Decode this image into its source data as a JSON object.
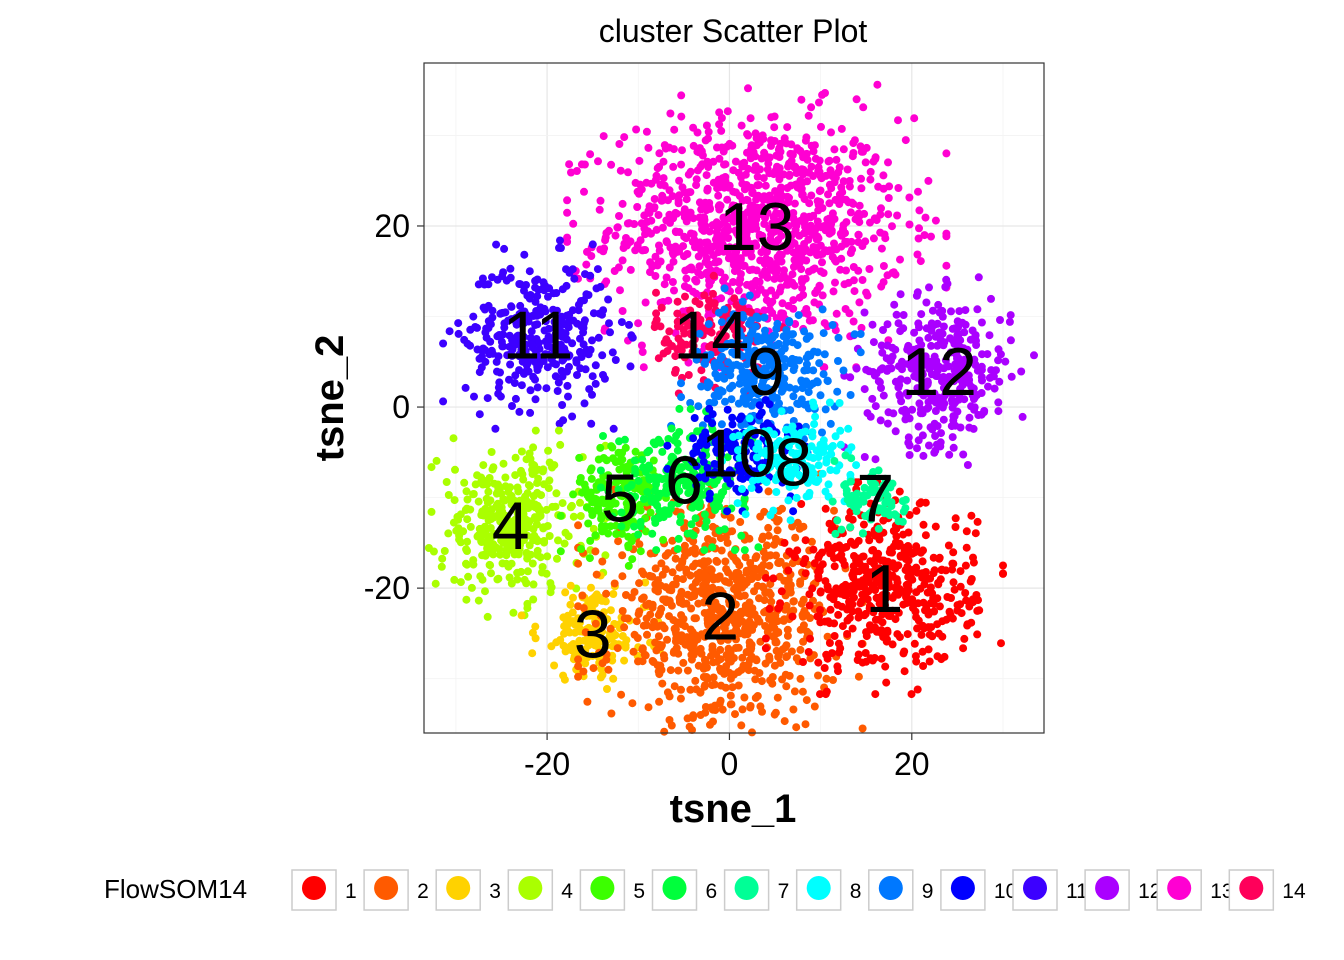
{
  "chart_data": {
    "type": "scatter",
    "title": "cluster Scatter Plot",
    "xlabel": "tsne_1",
    "ylabel": "tsne_2",
    "xlim": [
      -33.5,
      34.5
    ],
    "ylim": [
      -36,
      38
    ],
    "xticks": [
      -20,
      0,
      20
    ],
    "yticks": [
      -20,
      0,
      20
    ],
    "xtick_labels": [
      "-20",
      "0",
      "20"
    ],
    "ytick_labels": [
      "-20",
      "0",
      "20"
    ],
    "grid": true,
    "legend": {
      "title": "FlowSOM14",
      "position": "bottom"
    },
    "clusters": [
      {
        "name": "1",
        "color": "#FF0000",
        "center": [
          17,
          -20
        ],
        "spread": [
          5,
          4.5
        ]
      },
      {
        "name": "2",
        "color": "#FF5A00",
        "center": [
          -1,
          -23
        ],
        "spread": [
          6,
          6
        ]
      },
      {
        "name": "3",
        "color": "#FFD200",
        "center": [
          -15,
          -25
        ],
        "spread": [
          3,
          2.5
        ]
      },
      {
        "name": "4",
        "color": "#AAFF00",
        "center": [
          -24,
          -13
        ],
        "spread": [
          4,
          4
        ]
      },
      {
        "name": "5",
        "color": "#3CFF00",
        "center": [
          -12,
          -10
        ],
        "spread": [
          2.5,
          3
        ]
      },
      {
        "name": "6",
        "color": "#00FF3C",
        "center": [
          -5,
          -8
        ],
        "spread": [
          3.5,
          3
        ]
      },
      {
        "name": "7",
        "color": "#00FF96",
        "center": [
          16,
          -10
        ],
        "spread": [
          1.8,
          2
        ]
      },
      {
        "name": "8",
        "color": "#00FFFF",
        "center": [
          7,
          -6
        ],
        "spread": [
          3,
          2.5
        ]
      },
      {
        "name": "9",
        "color": "#0078FF",
        "center": [
          4,
          4
        ],
        "spread": [
          4,
          3.5
        ]
      },
      {
        "name": "10",
        "color": "#0000FF",
        "center": [
          1,
          -5
        ],
        "spread": [
          3,
          2.5
        ]
      },
      {
        "name": "11",
        "color": "#3C00FF",
        "center": [
          -21,
          8
        ],
        "spread": [
          4,
          4
        ]
      },
      {
        "name": "12",
        "color": "#AA00FF",
        "center": [
          23,
          4
        ],
        "spread": [
          4,
          4
        ]
      },
      {
        "name": "13",
        "color": "#FF00D2",
        "center": [
          3,
          20
        ],
        "spread": [
          8,
          6
        ]
      },
      {
        "name": "14",
        "color": "#FF005A",
        "center": [
          -2,
          8
        ],
        "spread": [
          3,
          2.5
        ]
      }
    ]
  }
}
